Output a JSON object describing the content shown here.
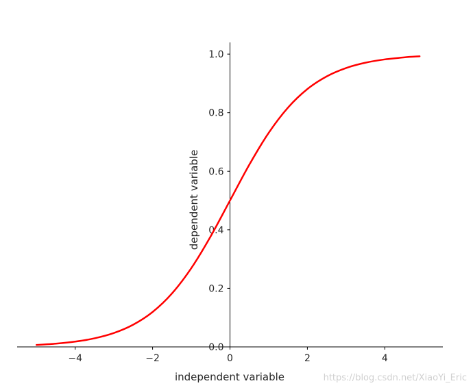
{
  "chart_data": {
    "type": "line",
    "title": "",
    "xlabel": "independent variable",
    "ylabel": "dependent variable",
    "xlim": [
      -5.5,
      5.5
    ],
    "ylim": [
      0,
      1.04
    ],
    "xticks": [
      -4,
      -2,
      0,
      2,
      4
    ],
    "xtick_labels": [
      "−4",
      "−2",
      "0",
      "2",
      "4"
    ],
    "yticks": [
      0.0,
      0.2,
      0.4,
      0.6,
      0.8,
      1.0
    ],
    "ytick_labels": [
      "0.0",
      "0.2",
      "0.4",
      "0.6",
      "0.8",
      "1.0"
    ],
    "grid": false,
    "spines": "centered",
    "series": [
      {
        "color": "#ff0000",
        "x": [
          -5,
          -4.5,
          -4,
          -3.5,
          -3,
          -2.5,
          -2,
          -1.5,
          -1,
          -0.5,
          0,
          0.5,
          1,
          1.5,
          2,
          2.5,
          3,
          3.5,
          4,
          4.5,
          4.9
        ],
        "y": [
          0.0067,
          0.011,
          0.018,
          0.0293,
          0.0474,
          0.0759,
          0.1192,
          0.1824,
          0.2689,
          0.3775,
          0.5,
          0.6225,
          0.7311,
          0.8176,
          0.8808,
          0.9241,
          0.9526,
          0.9707,
          0.982,
          0.989,
          0.9926
        ]
      }
    ]
  },
  "watermark": "https://blog.csdn.net/XiaoYi_Eric"
}
